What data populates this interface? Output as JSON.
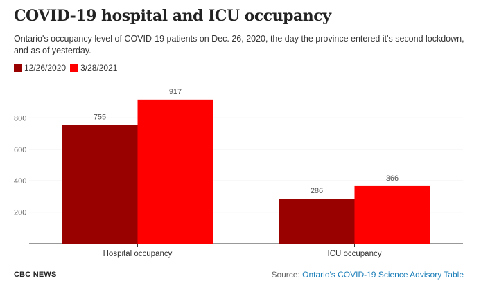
{
  "header": {
    "title": "COVID-19 hospital and ICU occupancy",
    "subtitle": "Ontario's occupancy level of COVID-19 patients on Dec. 26, 2020, the day the province entered it's second lockdown, and as of yesterday."
  },
  "colors": {
    "series1": "#990000",
    "series2": "#ff0000",
    "grid": "#e2e2e2",
    "axis": "#333333"
  },
  "chart_data": {
    "type": "bar",
    "title": "COVID-19 hospital and ICU occupancy",
    "xlabel": "",
    "ylabel": "",
    "categories": [
      "Hospital occupancy",
      "ICU occupancy"
    ],
    "series": [
      {
        "name": "12/26/2020",
        "values": [
          755,
          286
        ]
      },
      {
        "name": "3/28/2021",
        "values": [
          917,
          366
        ]
      }
    ],
    "ylim": [
      0,
      1000
    ],
    "yticks": [
      200,
      400,
      600,
      800
    ],
    "grid": true,
    "legend": "top-left"
  },
  "footer": {
    "brand": "CBC NEWS",
    "source_prefix": "Source: ",
    "source_link": "Ontario's COVID-19 Science Advisory Table"
  }
}
